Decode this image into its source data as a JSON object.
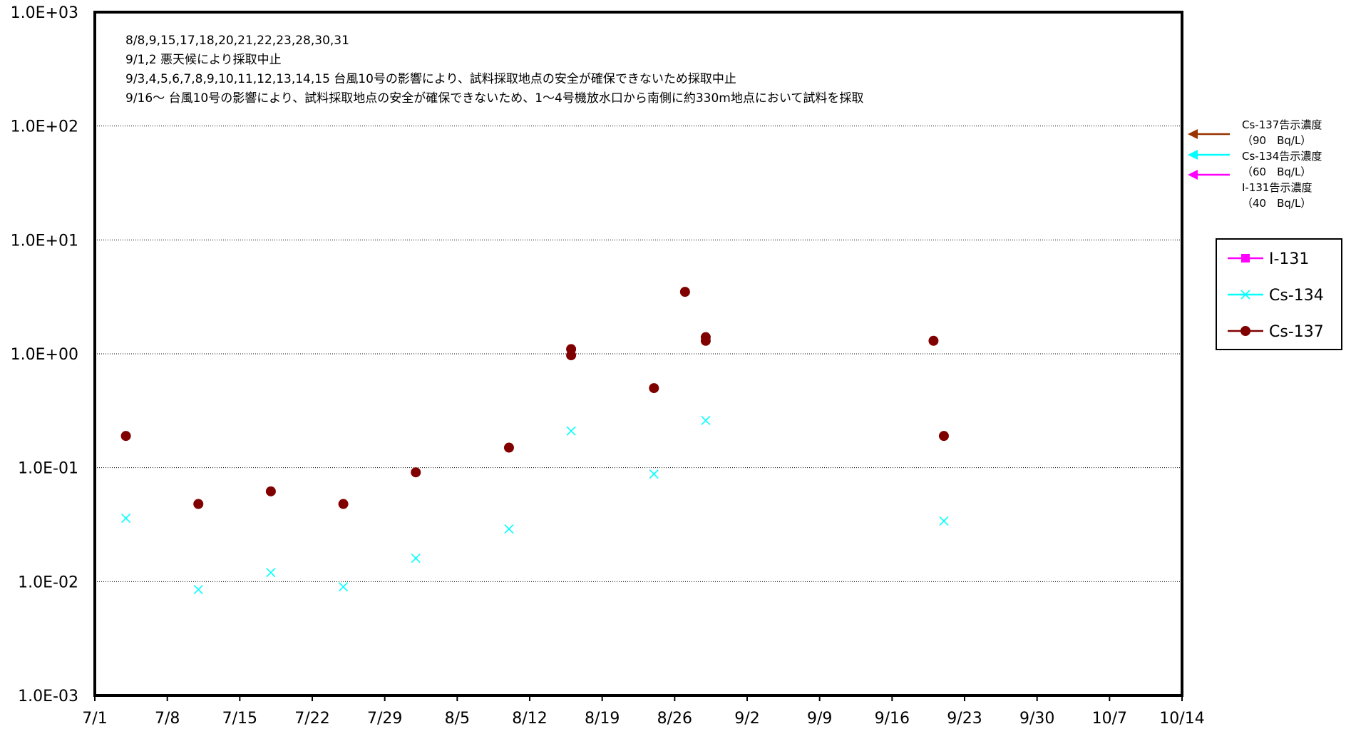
{
  "chart_data": {
    "type": "scatter",
    "title": "",
    "xlabel": "",
    "ylabel": "",
    "yscale": "log",
    "ylim": [
      0.001,
      1000
    ],
    "y_tick_labels": [
      "1.0E+03",
      "1.0E+02",
      "1.0E+01",
      "1.0E+00",
      "1.0E-01",
      "1.0E-02",
      "1.0E-03"
    ],
    "x_tick_labels": [
      "7/1",
      "7/8",
      "7/15",
      "7/22",
      "7/29",
      "8/5",
      "8/12",
      "8/19",
      "8/26",
      "9/2",
      "9/9",
      "9/16",
      "9/23",
      "9/30",
      "10/7",
      "10/14"
    ],
    "grid": "horizontal dotted",
    "legend_position": "right",
    "series": [
      {
        "name": "I-131",
        "color": "#ff00ff",
        "marker": "square",
        "points": []
      },
      {
        "name": "Cs-134",
        "color": "#00ffff",
        "marker": "x",
        "points": [
          {
            "x": "7/4",
            "y": 0.036
          },
          {
            "x": "7/11",
            "y": 0.0085
          },
          {
            "x": "7/18",
            "y": 0.012
          },
          {
            "x": "7/25",
            "y": 0.009
          },
          {
            "x": "8/1",
            "y": 0.016
          },
          {
            "x": "8/10",
            "y": 0.029
          },
          {
            "x": "8/16",
            "y": 0.21
          },
          {
            "x": "8/24",
            "y": 0.088
          },
          {
            "x": "8/29",
            "y": 0.26
          },
          {
            "x": "9/21",
            "y": 0.034
          }
        ]
      },
      {
        "name": "Cs-137",
        "color": "#800000",
        "marker": "circle",
        "points": [
          {
            "x": "7/4",
            "y": 0.19
          },
          {
            "x": "7/11",
            "y": 0.048
          },
          {
            "x": "7/18",
            "y": 0.062
          },
          {
            "x": "7/25",
            "y": 0.048
          },
          {
            "x": "8/1",
            "y": 0.091
          },
          {
            "x": "8/10",
            "y": 0.15
          },
          {
            "x": "8/16",
            "y": 1.1
          },
          {
            "x": "8/16",
            "y": 0.97
          },
          {
            "x": "8/24",
            "y": 0.5
          },
          {
            "x": "8/27",
            "y": 3.5
          },
          {
            "x": "8/29",
            "y": 1.4
          },
          {
            "x": "8/29",
            "y": 1.3
          },
          {
            "x": "9/20",
            "y": 1.3
          },
          {
            "x": "9/21",
            "y": 0.19
          }
        ]
      }
    ],
    "notes": [
      "8/8,9,15,17,18,20,21,22,23,28,30,31",
      "9/1,2 悪天候により採取中止",
      "9/3,4,5,6,7,8,9,10,11,12,13,14,15 台風10号の影響により、試料採取地点の安全が確保できないため採取中止",
      "9/16～ 台風10号の影響により、試料採取地点の安全が確保できないため、1～4号機放水口から南側に約330m地点において試料を採取"
    ],
    "reference_lines": [
      {
        "label": "Cs-137告示濃度",
        "value_text": "（90　Bq/L）",
        "value": 90,
        "color": "#993300"
      },
      {
        "label": "Cs-134告示濃度",
        "value_text": "（60　Bq/L）",
        "value": 60,
        "color": "#00ffff"
      },
      {
        "label": "I-131告示濃度",
        "value_text": "（40　Bq/L）",
        "value": 40,
        "color": "#ff00ff"
      }
    ]
  }
}
